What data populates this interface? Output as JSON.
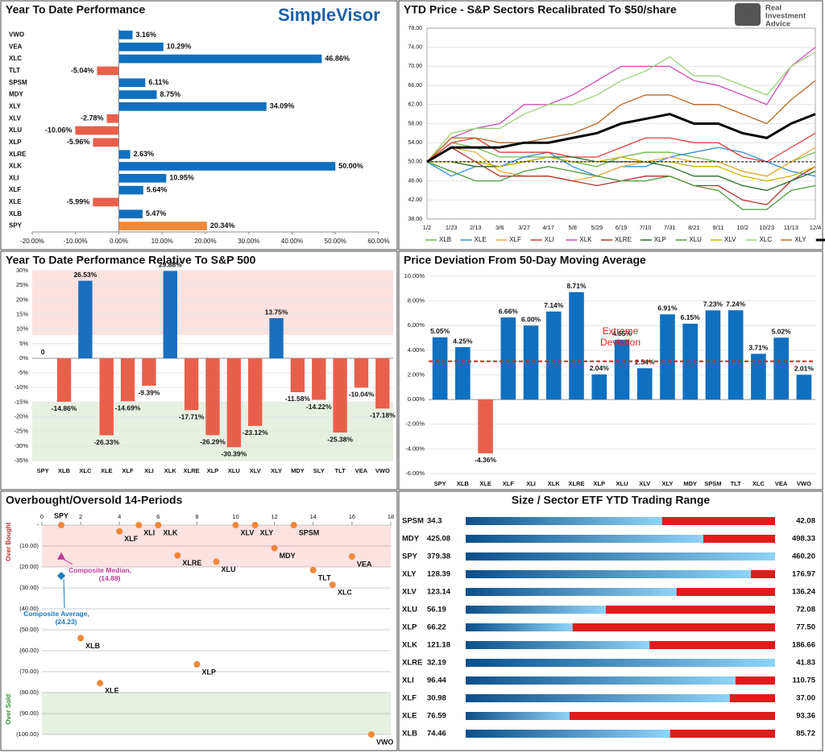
{
  "chart_data": [
    {
      "type": "hbar",
      "title": "Year To Date Performance",
      "logo": "SimpleVisor",
      "categories": [
        "VWO",
        "VEA",
        "XLC",
        "TLT",
        "SPSM",
        "MDY",
        "XLY",
        "XLV",
        "XLU",
        "XLP",
        "XLRE",
        "XLK",
        "XLI",
        "XLF",
        "XLE",
        "XLB",
        "SPY"
      ],
      "values": [
        3.16,
        10.29,
        46.86,
        -5.04,
        6.11,
        8.75,
        34.09,
        -2.78,
        -10.06,
        -5.96,
        2.63,
        50.0,
        10.95,
        5.64,
        -5.99,
        5.47,
        20.34
      ],
      "value_labels": [
        "3.16%",
        "10.29%",
        "46.86%",
        "-5.04%",
        "6.11%",
        "8.75%",
        "34.09%",
        "-2.78%",
        "-10.06%",
        "-5.96%",
        "2.63%",
        "50.00%",
        "10.95%",
        "5.64%",
        "-5.99%",
        "5.47%",
        "20.34%"
      ],
      "colors": [
        "#1070c0",
        "#1070c0",
        "#1070c0",
        "#e8604c",
        "#1070c0",
        "#1070c0",
        "#1070c0",
        "#e8604c",
        "#e8604c",
        "#e8604c",
        "#1070c0",
        "#1070c0",
        "#1070c0",
        "#1070c0",
        "#e8604c",
        "#1070c0",
        "#f0883a"
      ],
      "xlim": [
        -20,
        60
      ],
      "xticks": [
        {
          "value": -20,
          "label": "-20.00%"
        },
        {
          "value": -10,
          "label": "-10.00%"
        },
        {
          "value": 0,
          "label": "0.00%"
        },
        {
          "value": 10,
          "label": "10.00%"
        },
        {
          "value": 20,
          "label": "20.00%"
        },
        {
          "value": 30,
          "label": "30.00%"
        },
        {
          "value": 40,
          "label": "40.00%"
        },
        {
          "value": 50,
          "label": "50.00%"
        },
        {
          "value": 60,
          "label": "60.00%"
        }
      ]
    },
    {
      "type": "line",
      "title": "YTD Price - S&P Sectors Recalibrated To $50/share",
      "logo_lines": [
        "Real",
        "Investment",
        "Advice"
      ],
      "categories": [
        "1/2",
        "1/23",
        "2/13",
        "3/6",
        "3/27",
        "4/17",
        "5/8",
        "5/29",
        "6/19",
        "7/10",
        "7/31",
        "8/21",
        "9/11",
        "10/2",
        "10/23",
        "11/13",
        "12/4"
      ],
      "series": [
        {
          "name": "XLB",
          "color": "#70b84a",
          "values": [
            50,
            54,
            53,
            51,
            51,
            51,
            50,
            49,
            51,
            52,
            52,
            51,
            50,
            48,
            47,
            50,
            52
          ]
        },
        {
          "name": "XLE",
          "color": "#2e90e0",
          "values": [
            50,
            47,
            49,
            49,
            51,
            52,
            49,
            47,
            49,
            49,
            51,
            52,
            53,
            52,
            50,
            48,
            47
          ]
        },
        {
          "name": "XLF",
          "color": "#f2a93b",
          "values": [
            50,
            53,
            52,
            48,
            47,
            47,
            46,
            47,
            49,
            50,
            51,
            50,
            50,
            48,
            47,
            50,
            53
          ]
        },
        {
          "name": "XLI",
          "color": "#e03c3c",
          "values": [
            50,
            54,
            55,
            52,
            52,
            52,
            51,
            51,
            53,
            55,
            55,
            54,
            54,
            51,
            50,
            53,
            56
          ]
        },
        {
          "name": "XLK",
          "color": "#d24bb0",
          "values": [
            50,
            55,
            57,
            58,
            62,
            62,
            64,
            67,
            70,
            70,
            70,
            67,
            66,
            64,
            62,
            70,
            74
          ]
        },
        {
          "name": "XLRE",
          "color": "#b8322f",
          "values": [
            50,
            53,
            50,
            47,
            47,
            47,
            46,
            45,
            46,
            47,
            47,
            45,
            45,
            42,
            41,
            46,
            49
          ]
        },
        {
          "name": "XLP",
          "color": "#2d6b2d",
          "values": [
            50,
            50,
            49,
            49,
            50,
            51,
            51,
            50,
            50,
            50,
            49,
            47,
            47,
            45,
            44,
            46,
            48
          ]
        },
        {
          "name": "XLU",
          "color": "#4e9a3a",
          "values": [
            50,
            48,
            46,
            46,
            48,
            49,
            48,
            47,
            46,
            46,
            47,
            45,
            44,
            40,
            40,
            44,
            45
          ]
        },
        {
          "name": "XLV",
          "color": "#c9b400",
          "values": [
            50,
            50,
            50,
            49,
            50,
            51,
            50,
            50,
            51,
            50,
            50,
            49,
            49,
            47,
            46,
            47,
            49
          ]
        },
        {
          "name": "XLC",
          "color": "#9ad07a",
          "values": [
            50,
            56,
            57,
            57,
            60,
            62,
            62,
            64,
            67,
            69,
            72,
            68,
            68,
            66,
            64,
            70,
            73
          ]
        },
        {
          "name": "XLY",
          "color": "#c0651e",
          "values": [
            50,
            55,
            55,
            54,
            54,
            55,
            56,
            58,
            62,
            64,
            64,
            62,
            62,
            60,
            58,
            63,
            67
          ]
        },
        {
          "name": "SPY",
          "color": "#000000",
          "values": [
            50,
            53,
            53,
            53,
            54,
            54,
            55,
            56,
            58,
            59,
            60,
            58,
            58,
            56,
            55,
            58,
            60
          ]
        }
      ],
      "ylim": [
        38,
        78
      ],
      "yticks": [
        {
          "value": 38,
          "label": "38.00"
        },
        {
          "value": 42,
          "label": "42.00"
        },
        {
          "value": 46,
          "label": "46.00"
        },
        {
          "value": 50,
          "label": "50.00"
        },
        {
          "value": 54,
          "label": "54.00"
        },
        {
          "value": 58,
          "label": "58.00"
        },
        {
          "value": 62,
          "label": "62.00"
        },
        {
          "value": 66,
          "label": "66.00"
        },
        {
          "value": 70,
          "label": "70.00"
        },
        {
          "value": 74,
          "label": "74.00"
        },
        {
          "value": 78,
          "label": "78.00"
        }
      ],
      "reference": 50,
      "grid": true
    },
    {
      "type": "bar",
      "title": "Year To Date Performance Relative To S&P 500",
      "categories": [
        "SPY",
        "XLB",
        "XLC",
        "XLE",
        "XLF",
        "XLI",
        "XLK",
        "XLRE",
        "XLP",
        "XLU",
        "XLV",
        "XLY",
        "MDY",
        "SLY",
        "TLT",
        "VEA",
        "VWO"
      ],
      "values": [
        0,
        -14.86,
        26.53,
        -26.33,
        -14.69,
        -9.39,
        29.88,
        -17.71,
        -26.29,
        -30.39,
        -23.12,
        13.75,
        -11.58,
        -14.22,
        -25.38,
        -10.04,
        -17.18
      ],
      "value_labels": [
        "0",
        "-14.86%",
        "26.53%",
        "-26.33%",
        "-14.69%",
        "-9.39%",
        "29.88%",
        "-17.71%",
        "-26.29%",
        "-30.39%",
        "-23.12%",
        "13.75%",
        "-11.58%",
        "-14.22%",
        "-25.38%",
        "-10.04%",
        "-17.18%"
      ],
      "colors": [
        "#e8604c",
        "#e8604c",
        "#1a6fbf",
        "#e8604c",
        "#e8604c",
        "#e8604c",
        "#1a6fbf",
        "#e8604c",
        "#e8604c",
        "#e8604c",
        "#e8604c",
        "#1a6fbf",
        "#e8604c",
        "#e8604c",
        "#e8604c",
        "#e8604c",
        "#e8604c"
      ],
      "ylim": [
        -35,
        30
      ],
      "yticks": [
        {
          "value": -35,
          "label": "-35%"
        },
        {
          "value": -30,
          "label": "-30%"
        },
        {
          "value": -25,
          "label": "-25%"
        },
        {
          "value": -20,
          "label": "-20%"
        },
        {
          "value": -15,
          "label": "-15%"
        },
        {
          "value": -10,
          "label": "-10%"
        },
        {
          "value": -5,
          "label": "-5%"
        },
        {
          "value": 0,
          "label": "0%"
        },
        {
          "value": 5,
          "label": "5%"
        },
        {
          "value": 10,
          "label": "10%"
        },
        {
          "value": 15,
          "label": "15%"
        },
        {
          "value": 20,
          "label": "20%"
        },
        {
          "value": 25,
          "label": "25%"
        },
        {
          "value": 30,
          "label": "30%"
        }
      ],
      "bands": [
        {
          "from": 8,
          "to": 30,
          "color": "#fde2e2"
        },
        {
          "from": -15,
          "to": -35,
          "color": "#e6f1e1"
        }
      ],
      "grid": true
    },
    {
      "type": "bar",
      "title": "Price Deviation From 50-Day Moving Average",
      "categories": [
        "SPY",
        "XLB",
        "XLE",
        "XLF",
        "XLI",
        "XLK",
        "XLRE",
        "XLP",
        "XLU",
        "XLV",
        "XLY",
        "MDY",
        "SPSM",
        "TLT",
        "XLC",
        "VEA",
        "VWO"
      ],
      "values": [
        5.05,
        4.25,
        -4.36,
        6.66,
        6.0,
        7.14,
        8.71,
        2.04,
        4.85,
        2.54,
        6.91,
        6.15,
        7.23,
        7.24,
        3.71,
        5.02,
        2.01
      ],
      "value_labels": [
        "5.05%",
        "4.25%",
        "-4.36%",
        "6.66%",
        "6.00%",
        "7.14%",
        "8.71%",
        "2.04%",
        "4.85%",
        "2.54%",
        "6.91%",
        "6.15%",
        "7.23%",
        "7.24%",
        "3.71%",
        "5.02%",
        "2.01%"
      ],
      "colors": [
        "#1070c0",
        "#1070c0",
        "#e8604c",
        "#1070c0",
        "#1070c0",
        "#1070c0",
        "#1070c0",
        "#1070c0",
        "#1070c0",
        "#1070c0",
        "#1070c0",
        "#1070c0",
        "#1070c0",
        "#1070c0",
        "#1070c0",
        "#1070c0",
        "#1070c0"
      ],
      "ylim": [
        -6,
        10
      ],
      "yticks": [
        {
          "value": -6,
          "label": "-6.00%"
        },
        {
          "value": -4,
          "label": "-4.00%"
        },
        {
          "value": -2,
          "label": "-2.00%"
        },
        {
          "value": 0,
          "label": "0.00%"
        },
        {
          "value": 2,
          "label": "2.00%"
        },
        {
          "value": 4,
          "label": "4.00%"
        },
        {
          "value": 6,
          "label": "6.00%"
        },
        {
          "value": 8,
          "label": "8.00%"
        },
        {
          "value": 10,
          "label": "10.00%"
        }
      ],
      "threshold": 3.1,
      "threshold_label": "Extreme Deviation",
      "threshold_color": "#e02020",
      "grid": true
    },
    {
      "type": "scatter",
      "title": "Overbought/Oversold 14-Periods",
      "points": [
        {
          "label": "SPY",
          "x": 1,
          "y": 0
        },
        {
          "label": "XLB",
          "x": 2,
          "y": -54
        },
        {
          "label": "XLE",
          "x": 3,
          "y": -75.5
        },
        {
          "label": "XLF",
          "x": 4,
          "y": -3
        },
        {
          "label": "XLI",
          "x": 5,
          "y": 0
        },
        {
          "label": "XLK",
          "x": 6,
          "y": 0
        },
        {
          "label": "XLRE",
          "x": 7,
          "y": -14.5
        },
        {
          "label": "XLP",
          "x": 8,
          "y": -66.5
        },
        {
          "label": "XLU",
          "x": 9,
          "y": -17.5
        },
        {
          "label": "XLV",
          "x": 10,
          "y": 0
        },
        {
          "label": "XLY",
          "x": 11,
          "y": 0
        },
        {
          "label": "MDY",
          "x": 12,
          "y": -11
        },
        {
          "label": "SPSM",
          "x": 13,
          "y": 0
        },
        {
          "label": "TLT",
          "x": 14,
          "y": -21.5
        },
        {
          "label": "XLC",
          "x": 15,
          "y": -28.5
        },
        {
          "label": "VEA",
          "x": 16,
          "y": -15
        },
        {
          "label": "VWO",
          "x": 17,
          "y": -100
        }
      ],
      "composites": [
        {
          "label": "Composite Median,",
          "value_label": "(14.88)",
          "x": 1,
          "y": -14.88,
          "color": "#c0399a",
          "shape": "triangle"
        },
        {
          "label": "Composite Average,",
          "value_label": "(24.23)",
          "x": 1,
          "y": -24.23,
          "color": "#1a7ac0",
          "shape": "diamond"
        }
      ],
      "point_color": "#f0883a",
      "xlim": [
        0,
        18
      ],
      "xticks": [
        0,
        2,
        4,
        6,
        8,
        10,
        12,
        14,
        16,
        18
      ],
      "ylim": [
        -100,
        0
      ],
      "yticks": [
        {
          "value": 0,
          "label": "-"
        },
        {
          "value": -10,
          "label": "(10.00)"
        },
        {
          "value": -20,
          "label": "(20.00)"
        },
        {
          "value": -30,
          "label": "(30.00)"
        },
        {
          "value": -40,
          "label": "(40.00)"
        },
        {
          "value": -50,
          "label": "(50.00)"
        },
        {
          "value": -60,
          "label": "(60.00)"
        },
        {
          "value": -70,
          "label": "(70.00)"
        },
        {
          "value": -80,
          "label": "(80.00)"
        },
        {
          "value": -90,
          "label": "(90.00)"
        },
        {
          "value": -100,
          "label": "(100.00)"
        }
      ],
      "bands": [
        {
          "from": 0,
          "to": -20,
          "color": "#fde2e2"
        },
        {
          "from": -80,
          "to": -100,
          "color": "#e6f1e1"
        }
      ],
      "y_label_top": "Over Bought",
      "y_label_bottom": "Over Sold",
      "grid": true
    },
    {
      "type": "range",
      "title": "Size / Sector ETF YTD Trading Range",
      "categories": [
        "SPSM",
        "MDY",
        "SPY",
        "XLY",
        "XLV",
        "XLU",
        "XLP",
        "XLK",
        "XLRE",
        "XLI",
        "XLF",
        "XLE",
        "XLB"
      ],
      "low": [
        34.3,
        425.08,
        379.38,
        128.39,
        123.14,
        56.19,
        66.22,
        121.18,
        32.19,
        96.44,
        30.98,
        76.59,
        74.46
      ],
      "high": [
        42.08,
        498.33,
        460.2,
        176.97,
        136.24,
        72.08,
        77.5,
        186.66,
        41.83,
        110.75,
        37,
        93.36,
        85.72
      ],
      "high_labels": [
        "42.08",
        "498.33",
        "460.20",
        "176.97",
        "136.24",
        "72.08",
        "77.50",
        "186.66",
        "41.83",
        "110.75",
        "37.00",
        "93.36",
        "85.72"
      ],
      "values": [
        39.24,
        481.35,
        460.2,
        173.18,
        132.07,
        63.39,
        70.12,
        160.08,
        41.83,
        108.92,
        36.12,
        82.22,
        81.9
      ]
    }
  ]
}
